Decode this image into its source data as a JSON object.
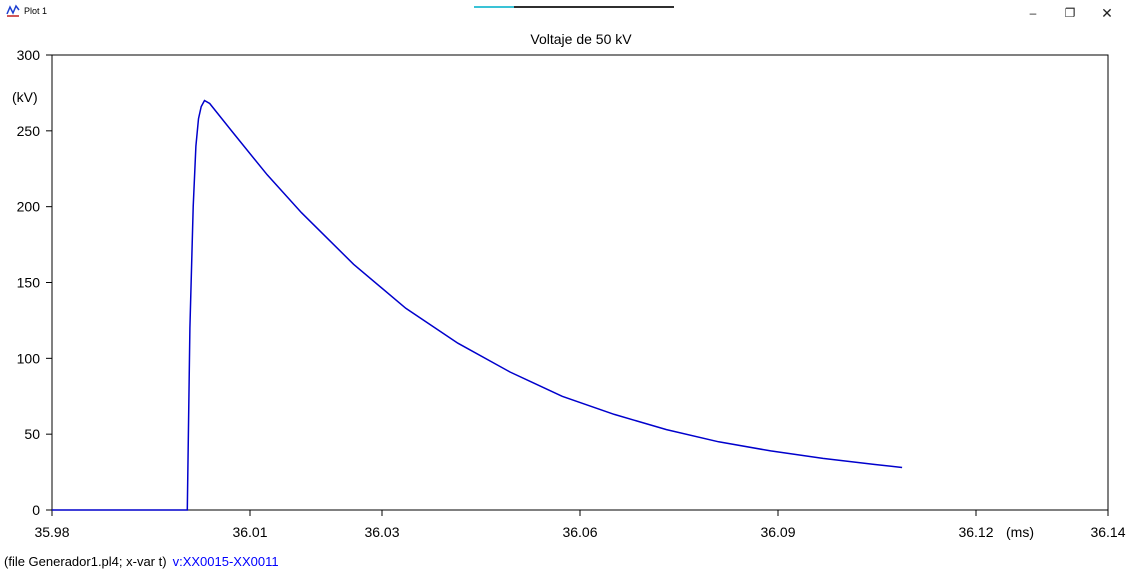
{
  "window": {
    "title": "Plot 1",
    "icon": "plot-app-icon",
    "controls": {
      "minimize": "–",
      "maximize": "❐",
      "close": "✕"
    }
  },
  "chart_data": {
    "type": "line",
    "title": "Voltaje de 50 kV",
    "xlabel": "(ms)",
    "ylabel": "(kV)",
    "xlim": [
      35.98,
      36.14
    ],
    "ylim": [
      0,
      300
    ],
    "x_ticks": [
      "35.98",
      "36.01",
      "36.03",
      "36.06",
      "36.09",
      "36.12",
      "36.14"
    ],
    "x_tick_values": [
      35.98,
      36.01,
      36.03,
      36.06,
      36.09,
      36.12,
      36.14
    ],
    "y_ticks": [
      "0",
      "50",
      "100",
      "150",
      "200",
      "250",
      "300"
    ],
    "y_tick_values": [
      0,
      50,
      100,
      150,
      200,
      250,
      300
    ],
    "grid": false,
    "series": [
      {
        "name": "v:XX0015-XX0011",
        "color": "#0000cc",
        "points": [
          [
            35.98,
            0
          ],
          [
            36.0005,
            0
          ],
          [
            36.0009,
            120
          ],
          [
            36.0014,
            200
          ],
          [
            36.0018,
            240
          ],
          [
            36.0022,
            258
          ],
          [
            36.0026,
            266
          ],
          [
            36.0031,
            270
          ],
          [
            36.0039,
            268
          ],
          [
            36.005,
            262
          ],
          [
            36.0074,
            249
          ],
          [
            36.0126,
            221
          ],
          [
            36.0178,
            196
          ],
          [
            36.0257,
            162
          ],
          [
            36.0336,
            133
          ],
          [
            36.0415,
            110
          ],
          [
            36.0494,
            91
          ],
          [
            36.0573,
            75
          ],
          [
            36.0652,
            63
          ],
          [
            36.0731,
            53
          ],
          [
            36.081,
            45
          ],
          [
            36.0889,
            39
          ],
          [
            36.0968,
            34
          ],
          [
            36.1047,
            30
          ],
          [
            36.1088,
            28
          ]
        ]
      }
    ]
  },
  "footer": {
    "file_info": "(file Generador1.pl4; x-var t)",
    "variable": "v:XX0015-XX0011"
  }
}
